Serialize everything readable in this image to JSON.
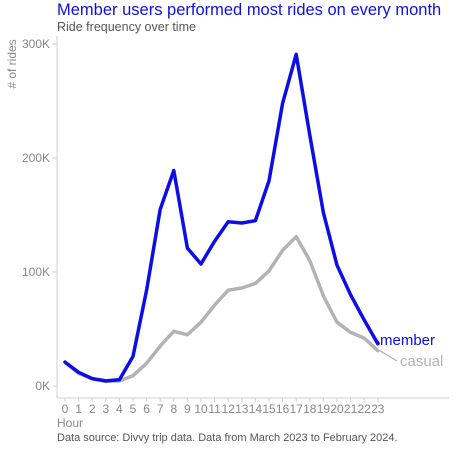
{
  "title": "Member users performed most rides on every month",
  "subtitle": "Ride frequency over time",
  "caption": "Data source: Divvy trip data. Data from March 2023 to February 2024.",
  "chart_data": {
    "type": "line",
    "xlabel": "Hour",
    "ylabel": "# of rides",
    "x": [
      0,
      1,
      2,
      3,
      4,
      5,
      6,
      7,
      8,
      9,
      10,
      11,
      12,
      13,
      14,
      15,
      16,
      17,
      18,
      19,
      20,
      21,
      22,
      23
    ],
    "x_tick_labels": [
      "0",
      "1",
      "2",
      "3",
      "4",
      "5",
      "6",
      "7",
      "8",
      "9",
      "10",
      "11",
      "12",
      "13",
      "14",
      "15",
      "16",
      "17",
      "18",
      "19",
      "20",
      "21",
      "22",
      "23"
    ],
    "xlim": [
      0,
      23
    ],
    "ylim": [
      0,
      300000
    ],
    "y_ticks": [
      0,
      100000,
      200000,
      300000
    ],
    "y_tick_labels": [
      "0K",
      "100K",
      "200K",
      "300K"
    ],
    "grid": false,
    "legend": "direct labels at line ends",
    "series": [
      {
        "name": "member",
        "color": "#0d0de6",
        "values": [
          21000,
          12000,
          6500,
          4500,
          5500,
          26000,
          84000,
          155000,
          189000,
          121000,
          107000,
          127000,
          144000,
          143000,
          145000,
          180000,
          248000,
          291000,
          220000,
          152000,
          106000,
          80000,
          58000,
          37000
        ]
      },
      {
        "name": "casual",
        "color": "#b3b3b3",
        "values": [
          21000,
          11000,
          6500,
          4000,
          4500,
          9000,
          20000,
          35000,
          48000,
          45000,
          56000,
          71000,
          84000,
          86000,
          90000,
          101000,
          119000,
          131000,
          110000,
          79000,
          56000,
          47000,
          42000,
          31000
        ]
      }
    ]
  }
}
